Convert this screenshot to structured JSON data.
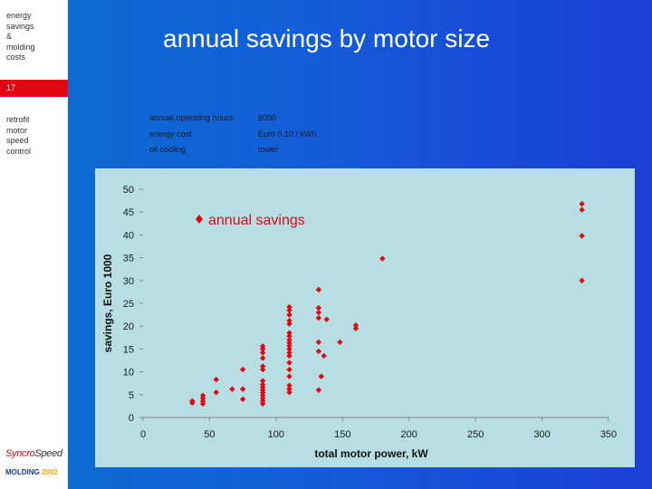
{
  "sidebar": {
    "heading_lines": [
      "energy",
      "savings",
      "&",
      "molding",
      "costs"
    ],
    "slide_number": "17",
    "topic_lines": [
      "retrofit",
      "motor",
      "speed",
      "control"
    ],
    "logo_brand_a": "Syncro",
    "logo_brand_b": "Speed",
    "logo_sub_a": "MOLDING",
    "logo_sub_b": "2002"
  },
  "title": "annual savings by motor size",
  "info": [
    {
      "label": "annual operating hours",
      "value": "6000"
    },
    {
      "label": "energy cost",
      "value": "Euro 0.10 / kWh"
    },
    {
      "label": "oil cooling",
      "value": "tower"
    }
  ],
  "colors": {
    "marker": "#e30613",
    "panel": "#b7dfe3",
    "axis": "#888888"
  },
  "chart_data": {
    "type": "scatter",
    "title": "",
    "xlabel": "total motor power, kW",
    "ylabel": "savings, Euro 1000",
    "xlim": [
      0,
      350
    ],
    "ylim": [
      0,
      50
    ],
    "xticks": [
      0,
      50,
      100,
      150,
      200,
      250,
      300,
      350
    ],
    "yticks": [
      0,
      5,
      10,
      15,
      20,
      25,
      30,
      35,
      40,
      45,
      50
    ],
    "grid": false,
    "legend_position": "top-center",
    "series": [
      {
        "name": "annual savings",
        "marker": "diamond",
        "points": [
          [
            37,
            3.2
          ],
          [
            37,
            3.6
          ],
          [
            45,
            3.0
          ],
          [
            45,
            3.6
          ],
          [
            45,
            4.2
          ],
          [
            45,
            4.8
          ],
          [
            55,
            5.5
          ],
          [
            55,
            8.3
          ],
          [
            67,
            6.2
          ],
          [
            75,
            6.2
          ],
          [
            75,
            10.5
          ],
          [
            75,
            4.0
          ],
          [
            90,
            3.0
          ],
          [
            90,
            3.6
          ],
          [
            90,
            4.2
          ],
          [
            90,
            4.8
          ],
          [
            90,
            5.4
          ],
          [
            90,
            6.0
          ],
          [
            90,
            6.6
          ],
          [
            90,
            7.2
          ],
          [
            90,
            8.0
          ],
          [
            90,
            10.5
          ],
          [
            90,
            11.2
          ],
          [
            90,
            13.0
          ],
          [
            90,
            14.2
          ],
          [
            90,
            15.0
          ],
          [
            90,
            15.6
          ],
          [
            110,
            5.5
          ],
          [
            110,
            6.2
          ],
          [
            110,
            7.0
          ],
          [
            110,
            9.0
          ],
          [
            110,
            10.5
          ],
          [
            110,
            12.0
          ],
          [
            110,
            13.5
          ],
          [
            110,
            14.2
          ],
          [
            110,
            15.0
          ],
          [
            110,
            15.7
          ],
          [
            110,
            16.3
          ],
          [
            110,
            17.0
          ],
          [
            110,
            17.8
          ],
          [
            110,
            18.5
          ],
          [
            110,
            20.5
          ],
          [
            110,
            21.2
          ],
          [
            110,
            22.5
          ],
          [
            110,
            23.5
          ],
          [
            110,
            24.2
          ],
          [
            132,
            6.0
          ],
          [
            132,
            14.5
          ],
          [
            132,
            16.5
          ],
          [
            132,
            21.8
          ],
          [
            132,
            23.0
          ],
          [
            132,
            24.0
          ],
          [
            132,
            28.0
          ],
          [
            134,
            9.0
          ],
          [
            136,
            13.5
          ],
          [
            138,
            21.5
          ],
          [
            148,
            16.5
          ],
          [
            160,
            19.5
          ],
          [
            160,
            20.2
          ],
          [
            180,
            34.8
          ],
          [
            330,
            30.0
          ],
          [
            330,
            39.8
          ],
          [
            330,
            45.5
          ],
          [
            330,
            46.8
          ]
        ]
      }
    ]
  }
}
